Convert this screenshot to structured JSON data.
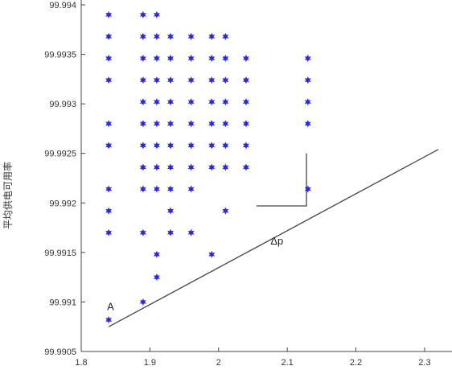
{
  "chart_data": {
    "type": "scatter",
    "title": "",
    "ylabel": "平均供电可用率",
    "xlabel": "",
    "xlim": [
      1.8,
      2.32
    ],
    "ylim": [
      99.9905,
      99.994
    ],
    "x_tick_labels": [
      "1.8",
      "1.9",
      "2",
      "2.1",
      "2.2",
      "2.3"
    ],
    "x_tick_values": [
      1.8,
      1.9,
      2.0,
      2.1,
      2.2,
      2.3
    ],
    "y_tick_labels": [
      "99.994",
      "99.9935",
      "99.993",
      "99.9925",
      "99.992",
      "99.9915",
      "99.991",
      "99.9905"
    ],
    "y_tick_values": [
      99.994,
      99.9935,
      99.993,
      99.9925,
      99.992,
      99.9915,
      99.991,
      99.9905
    ],
    "grid": false,
    "marker_color": "#2a2ad8",
    "series": [
      {
        "points": [
          [
            1.84,
            99.9939
          ],
          [
            1.84,
            99.99368
          ],
          [
            1.84,
            99.99346
          ],
          [
            1.84,
            99.99324
          ],
          [
            1.84,
            99.9928
          ],
          [
            1.84,
            99.99258
          ],
          [
            1.84,
            99.99214
          ],
          [
            1.84,
            99.99192
          ],
          [
            1.84,
            99.9917
          ],
          [
            1.84,
            99.99082
          ],
          [
            1.89,
            99.9939
          ],
          [
            1.89,
            99.99368
          ],
          [
            1.89,
            99.99346
          ],
          [
            1.89,
            99.99324
          ],
          [
            1.89,
            99.99302
          ],
          [
            1.89,
            99.9928
          ],
          [
            1.89,
            99.99258
          ],
          [
            1.89,
            99.99236
          ],
          [
            1.89,
            99.99214
          ],
          [
            1.89,
            99.9917
          ],
          [
            1.89,
            99.991
          ],
          [
            1.91,
            99.9939
          ],
          [
            1.91,
            99.99368
          ],
          [
            1.91,
            99.99346
          ],
          [
            1.91,
            99.99324
          ],
          [
            1.91,
            99.99302
          ],
          [
            1.91,
            99.9928
          ],
          [
            1.91,
            99.99258
          ],
          [
            1.91,
            99.99236
          ],
          [
            1.91,
            99.99214
          ],
          [
            1.91,
            99.99148
          ],
          [
            1.91,
            99.99125
          ],
          [
            1.93,
            99.99368
          ],
          [
            1.93,
            99.99346
          ],
          [
            1.93,
            99.99324
          ],
          [
            1.93,
            99.99302
          ],
          [
            1.93,
            99.9928
          ],
          [
            1.93,
            99.99258
          ],
          [
            1.93,
            99.99236
          ],
          [
            1.93,
            99.99214
          ],
          [
            1.93,
            99.99192
          ],
          [
            1.93,
            99.9917
          ],
          [
            1.96,
            99.99368
          ],
          [
            1.96,
            99.99346
          ],
          [
            1.96,
            99.99324
          ],
          [
            1.96,
            99.99302
          ],
          [
            1.96,
            99.9928
          ],
          [
            1.96,
            99.99258
          ],
          [
            1.96,
            99.99236
          ],
          [
            1.96,
            99.99214
          ],
          [
            1.96,
            99.9917
          ],
          [
            1.99,
            99.99368
          ],
          [
            1.99,
            99.99346
          ],
          [
            1.99,
            99.99324
          ],
          [
            1.99,
            99.99302
          ],
          [
            1.99,
            99.9928
          ],
          [
            1.99,
            99.99258
          ],
          [
            1.99,
            99.99236
          ],
          [
            1.99,
            99.99148
          ],
          [
            2.01,
            99.99368
          ],
          [
            2.01,
            99.99346
          ],
          [
            2.01,
            99.99324
          ],
          [
            2.01,
            99.99302
          ],
          [
            2.01,
            99.9928
          ],
          [
            2.01,
            99.99258
          ],
          [
            2.01,
            99.99236
          ],
          [
            2.01,
            99.99192
          ],
          [
            2.04,
            99.99346
          ],
          [
            2.04,
            99.99324
          ],
          [
            2.04,
            99.99302
          ],
          [
            2.04,
            99.9928
          ],
          [
            2.04,
            99.99258
          ],
          [
            2.04,
            99.99236
          ],
          [
            2.13,
            99.99346
          ],
          [
            2.13,
            99.99324
          ],
          [
            2.13,
            99.99302
          ],
          [
            2.13,
            99.9928
          ],
          [
            2.13,
            99.99214
          ]
        ]
      }
    ],
    "fit_line": [
      [
        1.84,
        99.99075
      ],
      [
        2.32,
        99.99254
      ]
    ],
    "annotations": {
      "point_label": "A",
      "point_label_at": [
        1.84,
        99.99092
      ],
      "delta_label": "Δp",
      "delta_label_at": [
        2.085,
        99.99158
      ],
      "delta_triangle": [
        [
          2.055,
          99.99197
        ],
        [
          2.128,
          99.99197
        ],
        [
          2.128,
          99.9925
        ]
      ]
    }
  }
}
